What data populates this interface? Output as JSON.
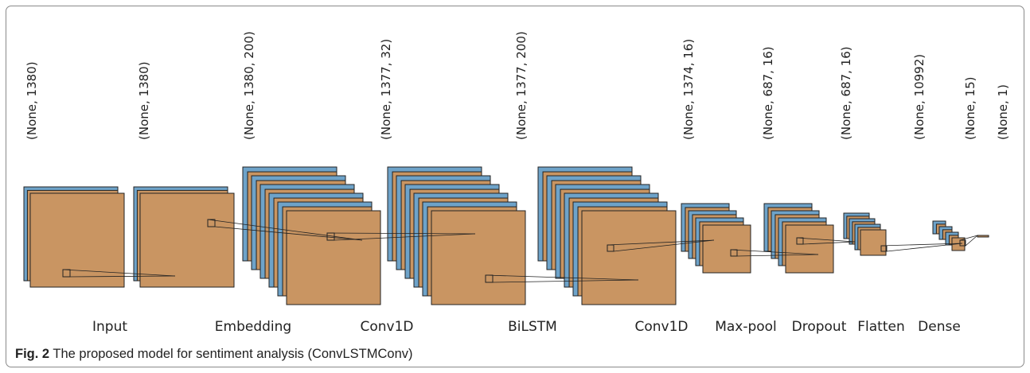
{
  "figure": {
    "caption_label": "Fig. 2",
    "caption_text": " The proposed model for sentiment analysis (ConvLSTMConv)"
  },
  "colors": {
    "back_face": "#6ea3c9",
    "front_face": "#c99562",
    "stroke": "#222222"
  },
  "layers": [
    {
      "name": "Input",
      "shape": "(None, 1380)"
    },
    {
      "name": "",
      "shape": "(None, 1380)"
    },
    {
      "name": "Embedding",
      "shape": "(None, 1380, 200)"
    },
    {
      "name": "Conv1D",
      "shape": "(None, 1377, 32)"
    },
    {
      "name": "BiLSTM",
      "shape": "(None, 1377, 200)"
    },
    {
      "name": "Conv1D",
      "shape": "(None, 1374, 16)"
    },
    {
      "name": "Max-pool",
      "shape": "(None, 687, 16)"
    },
    {
      "name": "Dropout",
      "shape": "(None, 687, 16)"
    },
    {
      "name": "Flatten",
      "shape": "(None, 10992)"
    },
    {
      "name": "Dense",
      "shape": "(None, 15)"
    },
    {
      "name": "",
      "shape": "(None, 1)"
    }
  ]
}
